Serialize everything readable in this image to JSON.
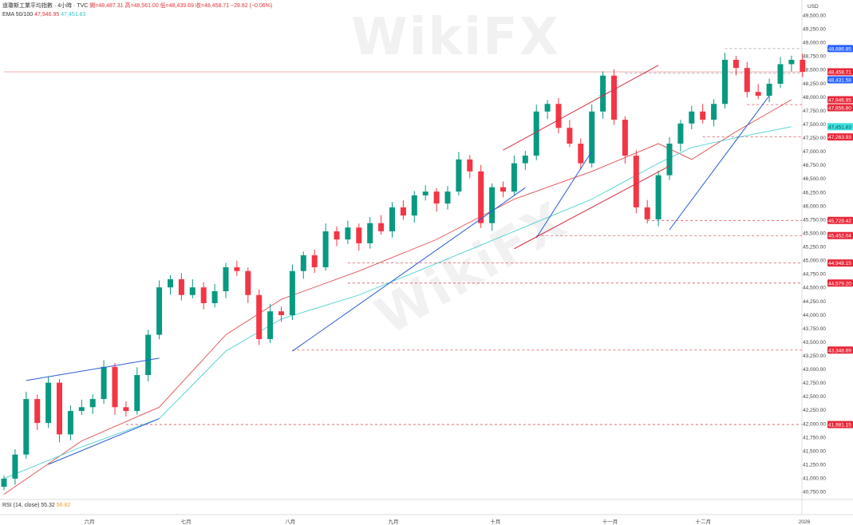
{
  "header": {
    "title": "道瓊斯工業平均指數 · 4小時 · TVC",
    "open": "開=48,487.31",
    "high": "高=48,561.00",
    "low": "低=48,439.69",
    "close": "收=48,458.71",
    "change": "−28.82 (−0.06%)",
    "ema_label": "EMA 50/100",
    "ema50": "47,946.95",
    "ema100": "47,451.83"
  },
  "rsi": {
    "label": "RSI (14, close)",
    "v1": "55.32",
    "v2": "56.82"
  },
  "currency": "USD",
  "watermark": "WikiFX",
  "colors": {
    "up": "#089981",
    "down": "#f23645",
    "ema50": "#e05050",
    "ema100": "#4dd0d0",
    "trend_blue": "#2a5bd7",
    "trend_red": "#d03040",
    "level": "#e05060"
  },
  "chart_data": {
    "type": "candlestick",
    "ylim": [
      40650,
      49550
    ],
    "y_ticks": [
      "49,500.00",
      "49,250.00",
      "49,000.00",
      "48,750.00",
      "48,500.00",
      "48,250.00",
      "48,000.00",
      "47,750.00",
      "47,500.00",
      "47,250.00",
      "47,000.00",
      "46,750.00",
      "46,500.00",
      "46,250.00",
      "46,000.00",
      "45,750.00",
      "45,500.00",
      "45,250.00",
      "45,000.00",
      "44,750.00",
      "44,500.00",
      "44,250.00",
      "44,000.00",
      "43,750.00",
      "43,500.00",
      "43,250.00",
      "43,000.00",
      "42,750.00",
      "42,500.00",
      "42,250.00",
      "42,000.00",
      "41,750.00",
      "41,500.00",
      "41,250.00",
      "41,000.00",
      "40,750.00"
    ],
    "x_labels": [
      {
        "label": "六月",
        "index": 7.6
      },
      {
        "label": "七月",
        "index": 16.3
      },
      {
        "label": "八月",
        "index": 25.7
      },
      {
        "label": "九月",
        "index": 35
      },
      {
        "label": "十月",
        "index": 44.2
      },
      {
        "label": "十一月",
        "index": 54.3
      },
      {
        "label": "十二月",
        "index": 62.7
      },
      {
        "label": "2026",
        "index": 72
      }
    ],
    "closes": [
      40988,
      41430,
      42450,
      42010,
      42750,
      41800,
      42230,
      42300,
      42450,
      43040,
      42300,
      42230,
      42890,
      43630,
      44500,
      44650,
      44360,
      44500,
      44210,
      44430,
      44870,
      44800,
      44360,
      43550,
      44060,
      43990,
      44800,
      45090,
      44870,
      45530,
      45380,
      45600,
      45310,
      45680,
      45530,
      45970,
      45820,
      46190,
      46260,
      46040,
      46260,
      46850,
      46630,
      45680,
      46340,
      46260,
      46780,
      46920,
      47730,
      47870,
      47430,
      47140,
      46780,
      47730,
      48390,
      47580,
      46920,
      45970,
      45750,
      46560,
      47140,
      47510,
      47730,
      47580,
      47870,
      48680,
      48530,
      48090,
      48020,
      48240,
      48600,
      48680,
      48458.71
    ],
    "ema50": {
      "x": [
        0,
        7,
        14,
        20,
        25,
        32,
        39,
        46,
        53,
        59,
        62,
        66,
        71
      ],
      "y": [
        40700,
        41680,
        42300,
        43630,
        44280,
        44800,
        45380,
        46120,
        46630,
        47140,
        46850,
        47360,
        47946.95
      ]
    },
    "ema100": {
      "x": [
        0,
        7,
        14,
        20,
        25,
        32,
        39,
        46,
        53,
        59,
        62,
        66,
        71
      ],
      "y": [
        40990,
        41570,
        42090,
        43330,
        43920,
        44360,
        44940,
        45530,
        46120,
        46780,
        47070,
        47250,
        47451.83
      ]
    },
    "levels": [
      {
        "price": "48,886.85",
        "value": 48886.85,
        "from": 65,
        "kind": "blue"
      },
      {
        "price": "48,458.71",
        "value": 48458.71,
        "from": 0,
        "kind": "current"
      },
      {
        "price": "48,431.58",
        "value": 48431.58,
        "from": 56,
        "kind": "blue"
      },
      {
        "price": "47,946.95",
        "value": 47946.95,
        "from": 99,
        "kind": "red"
      },
      {
        "price": "47,856.80",
        "value": 47856.8,
        "from": 67,
        "kind": "red"
      },
      {
        "price": "47,451.83",
        "value": 47451.83,
        "from": 99,
        "kind": "cyan"
      },
      {
        "price": "47,263.93",
        "value": 47263.93,
        "from": 63,
        "kind": "red"
      },
      {
        "price": "45,729.42",
        "value": 45729.42,
        "from": 58,
        "kind": "red"
      },
      {
        "price": "45,452.04",
        "value": 45452.04,
        "from": 48,
        "kind": "red"
      },
      {
        "price": "44,948.15",
        "value": 44948.15,
        "from": 31,
        "kind": "red"
      },
      {
        "price": "44,579.20",
        "value": 44579.2,
        "from": 31,
        "kind": "red"
      },
      {
        "price": "43,348.69",
        "value": 43348.69,
        "from": 26,
        "kind": "red"
      },
      {
        "price": "41,981.15",
        "value": 41981.15,
        "from": 11,
        "kind": "red"
      }
    ],
    "trendlines": [
      {
        "color": "blue",
        "x": [
          2,
          14
        ],
        "y": [
          42790,
          43200
        ]
      },
      {
        "color": "blue",
        "x": [
          4,
          14
        ],
        "y": [
          41250,
          42090
        ]
      },
      {
        "color": "blue",
        "x": [
          26,
          47
        ],
        "y": [
          43330,
          46330
        ]
      },
      {
        "color": "blue",
        "x": [
          48,
          53
        ],
        "y": [
          45410,
          47000
        ]
      },
      {
        "color": "blue",
        "x": [
          60,
          69
        ],
        "y": [
          45560,
          48020
        ]
      },
      {
        "color": "red",
        "x": [
          45,
          59
        ],
        "y": [
          47020,
          48580
        ]
      },
      {
        "color": "red",
        "x": [
          46,
          60
        ],
        "y": [
          45210,
          46730
        ]
      }
    ]
  }
}
